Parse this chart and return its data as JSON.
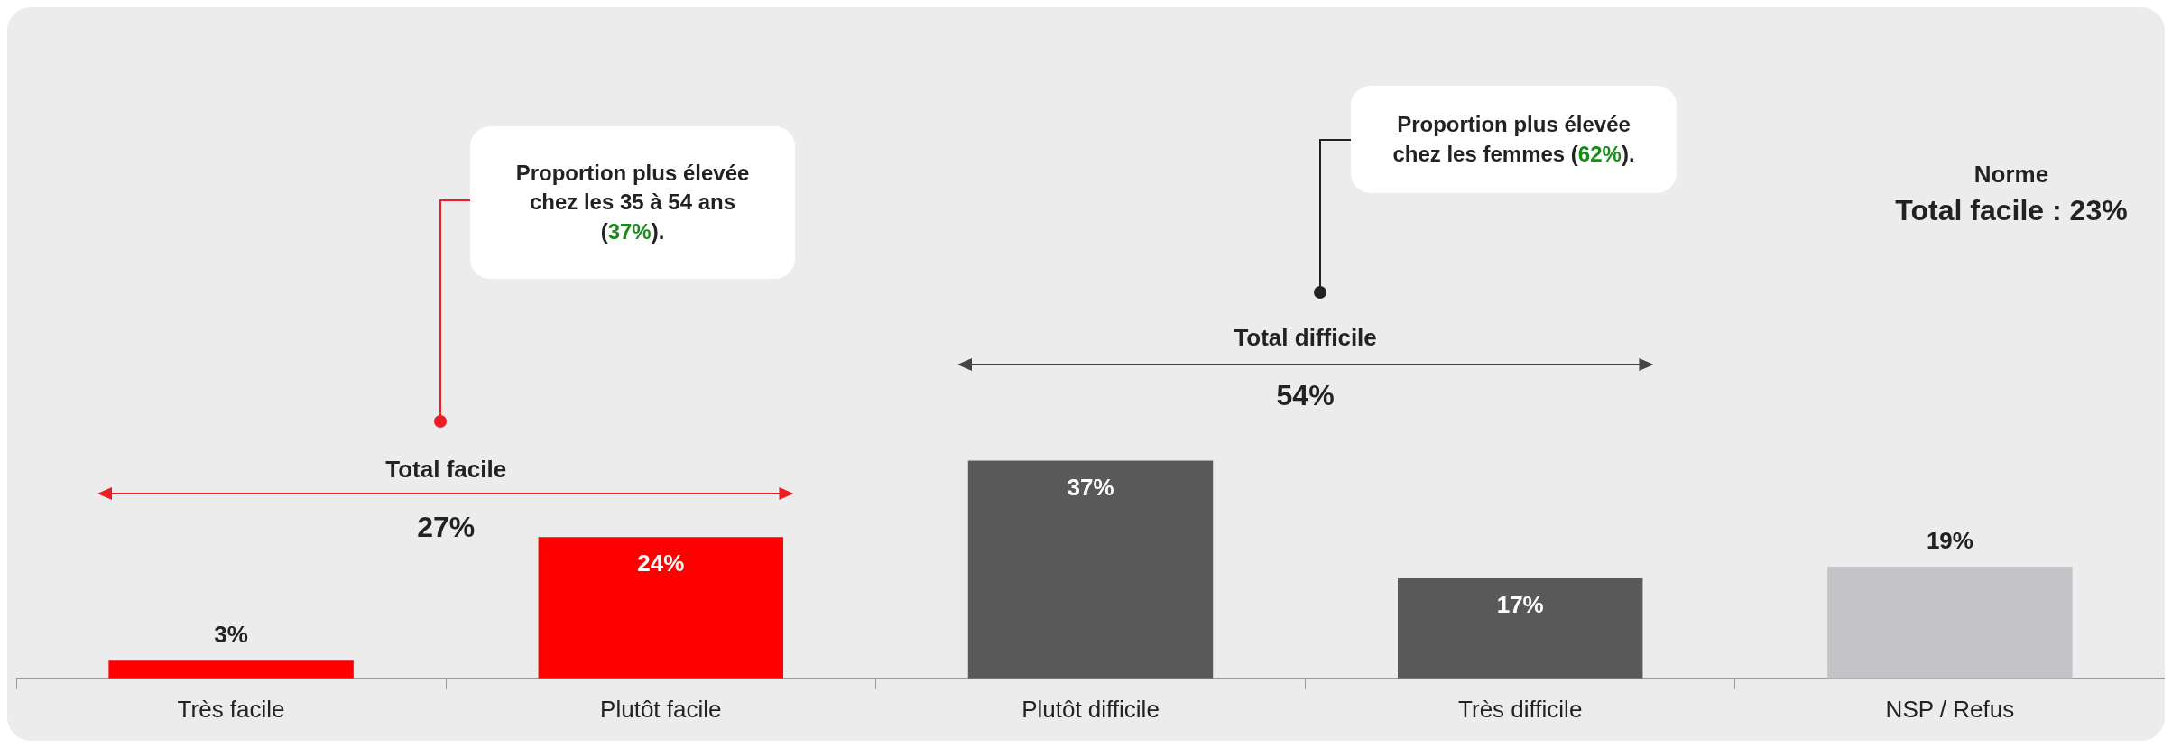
{
  "chart_data": {
    "type": "bar",
    "categories": [
      "Très facile",
      "Plutôt facile",
      "Plutôt difficile",
      "Très difficile",
      "NSP / Refus"
    ],
    "values": [
      3,
      24,
      37,
      17,
      19
    ],
    "colors": [
      "#ff0000",
      "#ff0000",
      "#595959",
      "#595959",
      "#c4c3c8"
    ],
    "value_labels": [
      "3%",
      "24%",
      "37%",
      "17%",
      "19%"
    ],
    "legend": false,
    "annotations": [
      "Total facile",
      "27%",
      "Total difficile",
      "54%",
      "Proportion plus élevée chez les 35 à 54 ans (37%).",
      "Proportion plus élevée chez les femmes (62%).",
      "Norme",
      "Total facile : 23%"
    ]
  }
}
